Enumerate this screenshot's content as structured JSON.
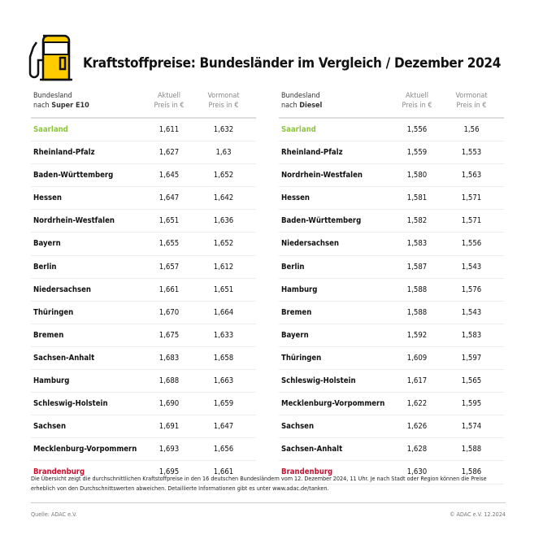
{
  "title": "Kraftstoffpreise: Bundesländer im Vergleich / Dezember 2024",
  "colors": {
    "best": "#8cc63f",
    "worst": "#c8102e",
    "accent": "#ffcc00"
  },
  "icon": "fuel-pump-icon",
  "tables": [
    {
      "header": {
        "col1_line1": "Bundesland",
        "col1_prefix": "nach ",
        "col1_fuel": "Super E10",
        "col2_line1": "Aktuell",
        "col2_line2": "Preis in €",
        "col3_line1": "Vormonat",
        "col3_line2": "Preis in €"
      },
      "rows": [
        [
          "Saarland",
          "1,611",
          "1,632"
        ],
        [
          "Rheinland-Pfalz",
          "1,627",
          "1,63"
        ],
        [
          "Baden-Württemberg",
          "1,645",
          "1,652"
        ],
        [
          "Hessen",
          "1,647",
          "1,642"
        ],
        [
          "Nordrhein-Westfalen",
          "1,651",
          "1,636"
        ],
        [
          "Bayern",
          "1,655",
          "1,652"
        ],
        [
          "Berlin",
          "1,657",
          "1,612"
        ],
        [
          "Niedersachsen",
          "1,661",
          "1,651"
        ],
        [
          "Thüringen",
          "1,670",
          "1,664"
        ],
        [
          "Bremen",
          "1,675",
          "1,633"
        ],
        [
          "Sachsen-Anhalt",
          "1,683",
          "1,658"
        ],
        [
          "Hamburg",
          "1,688",
          "1,663"
        ],
        [
          "Schleswig-Holstein",
          "1,690",
          "1,659"
        ],
        [
          "Sachsen",
          "1,691",
          "1,647"
        ],
        [
          "Mecklenburg-Vorpommern",
          "1,693",
          "1,656"
        ],
        [
          "Brandenburg",
          "1,695",
          "1,661"
        ]
      ]
    },
    {
      "header": {
        "col1_line1": "Bundesland",
        "col1_prefix": "nach ",
        "col1_fuel": "Diesel",
        "col2_line1": "Aktuell",
        "col2_line2": "Preis in €",
        "col3_line1": "Vormonat",
        "col3_line2": "Preis in €"
      },
      "rows": [
        [
          "Saarland",
          "1,556",
          "1,56"
        ],
        [
          "Rheinland-Pfalz",
          "1,559",
          "1,553"
        ],
        [
          "Nordrhein-Westfalen",
          "1,580",
          "1,563"
        ],
        [
          "Hessen",
          "1,581",
          "1,571"
        ],
        [
          "Baden-Württemberg",
          "1,582",
          "1,571"
        ],
        [
          "Niedersachsen",
          "1,583",
          "1,556"
        ],
        [
          "Berlin",
          "1,587",
          "1,543"
        ],
        [
          "Hamburg",
          "1,588",
          "1,576"
        ],
        [
          "Bremen",
          "1,588",
          "1,543"
        ],
        [
          "Bayern",
          "1,592",
          "1,583"
        ],
        [
          "Thüringen",
          "1,609",
          "1,597"
        ],
        [
          "Schleswig-Holstein",
          "1,617",
          "1,565"
        ],
        [
          "Mecklenburg-Vorpommern",
          "1,622",
          "1,595"
        ],
        [
          "Sachsen",
          "1,626",
          "1,574"
        ],
        [
          "Sachsen-Anhalt",
          "1,628",
          "1,588"
        ],
        [
          "Brandenburg",
          "1,630",
          "1,586"
        ]
      ]
    }
  ],
  "note": "Die Übersicht zeigt die durchschnittlichen Kraftstoffpreise in den 16 deutschen Bundesländern vom 12. Dezember 2024, 11 Uhr. Je nach Stadt oder Region können die Preise erheblich von den Durchschnittswerten abweichen. Detaillierte Informationen gibt es unter www.adac.de/tanken.",
  "source": "Quelle: ADAC e.V.",
  "copyright": "© ADAC e.V. 12.2024"
}
